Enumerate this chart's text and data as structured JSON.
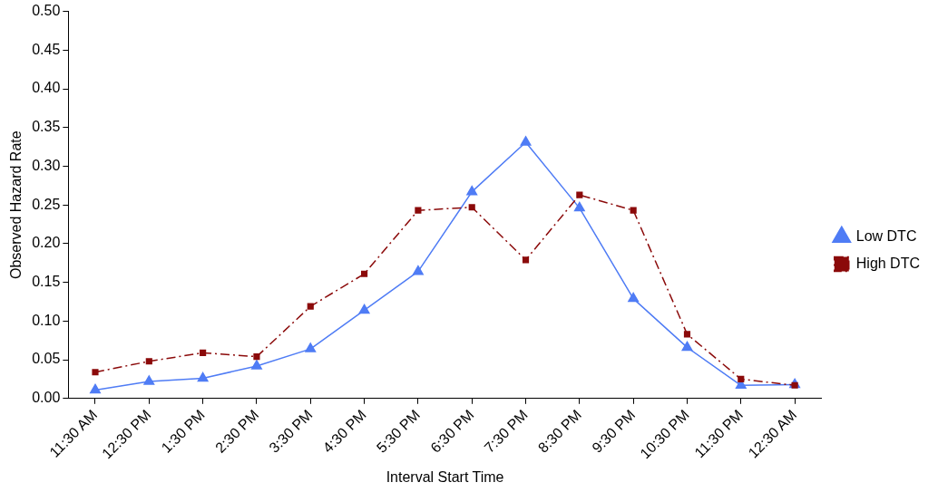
{
  "chart_data": {
    "type": "line",
    "xlabel": "Interval Start Time",
    "ylabel": "Observed Hazard Rate",
    "categories": [
      "11:30 AM",
      "12:30 PM",
      "1:30 PM",
      "2:30 PM",
      "3:30 PM",
      "4:30 PM",
      "5:30 PM",
      "6:30 PM",
      "7:30 PM",
      "8:30 PM",
      "9:30 PM",
      "10:30 PM",
      "11:30 PM",
      "12:30 AM"
    ],
    "series": [
      {
        "name": "Low DTC",
        "color": "#4f7cf5",
        "marker": "triangle",
        "line_style": "solid",
        "values": [
          0.011,
          0.022,
          0.026,
          0.042,
          0.064,
          0.114,
          0.164,
          0.267,
          0.331,
          0.246,
          0.129,
          0.066,
          0.017,
          0.018
        ]
      },
      {
        "name": "High DTC",
        "color": "#8b0a0a",
        "marker": "square",
        "line_style": "dashed",
        "values": [
          0.034,
          0.048,
          0.059,
          0.054,
          0.119,
          0.161,
          0.243,
          0.247,
          0.179,
          0.263,
          0.243,
          0.083,
          0.025,
          0.017
        ]
      }
    ],
    "ylim": [
      0,
      0.5
    ],
    "yticks": [
      {
        "value": 0,
        "label": "0.00"
      },
      {
        "value": 0.05,
        "label": "0.05"
      },
      {
        "value": 0.1,
        "label": "0.10"
      },
      {
        "value": 0.15,
        "label": "0.15"
      },
      {
        "value": 0.2,
        "label": "0.20"
      },
      {
        "value": 0.25,
        "label": "0.25"
      },
      {
        "value": 0.3,
        "label": "0.30"
      },
      {
        "value": 0.35,
        "label": "0.35"
      },
      {
        "value": 0.4,
        "label": "0.40"
      },
      {
        "value": 0.45,
        "label": "0.45"
      },
      {
        "value": 0.5,
        "label": "0.50"
      }
    ],
    "grid": false,
    "legend": "right"
  }
}
